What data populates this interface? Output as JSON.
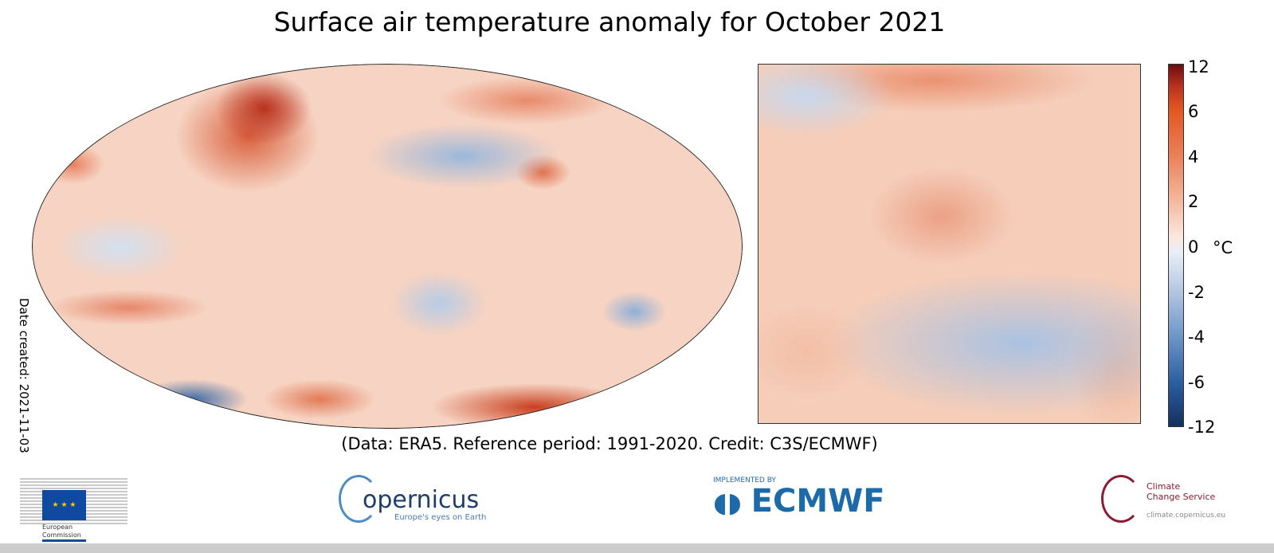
{
  "title": "Surface air temperature anomaly for October 2021",
  "caption": "(Data: ERA5.  Reference period: 1991-2020.  Credit: C3S/ECMWF)",
  "date_created": "Date created: 2021-11-03",
  "colorbar": {
    "ticks": [
      "12",
      "6",
      "4",
      "2",
      "0",
      "-2",
      "-4",
      "-6",
      "-12"
    ],
    "unit": "°C",
    "min": -12,
    "max": 12,
    "colors": {
      "max": "#6b0d0d",
      "zero": "#fbf3ee",
      "min": "#152f5e"
    }
  },
  "logos": {
    "ec": {
      "line1": "European",
      "line2": "Commission"
    },
    "copernicus": {
      "name": "opernicus",
      "tagline": "Europe's eyes on Earth"
    },
    "ecmwf": {
      "pre": "IMPLEMENTED BY",
      "name": "ECMWF"
    },
    "c3s": {
      "line1": "Climate",
      "line2": "Change Service",
      "url": "climate.copernicus.eu"
    }
  }
}
